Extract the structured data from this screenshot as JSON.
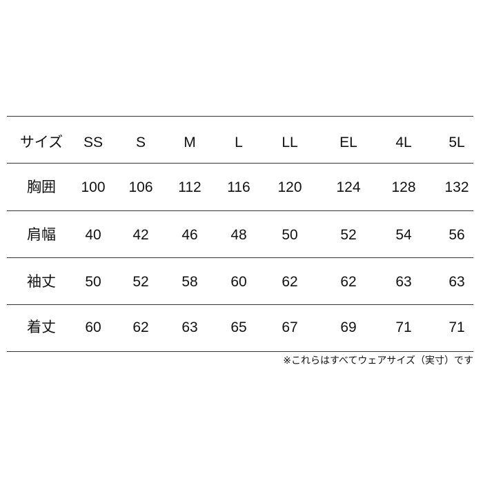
{
  "table": {
    "header": [
      "サイズ",
      "SS",
      "S",
      "M",
      "L",
      "LL",
      "EL",
      "4L",
      "5L"
    ],
    "rows": [
      [
        "胸囲",
        "100",
        "106",
        "112",
        "116",
        "120",
        "124",
        "128",
        "132"
      ],
      [
        "肩幅",
        "40",
        "42",
        "46",
        "48",
        "50",
        "52",
        "54",
        "56"
      ],
      [
        "袖丈",
        "50",
        "52",
        "58",
        "60",
        "62",
        "62",
        "63",
        "63"
      ],
      [
        "着丈",
        "60",
        "62",
        "63",
        "65",
        "67",
        "69",
        "71",
        "71"
      ]
    ]
  },
  "note": "※これらはすべてウェアサイズ（実寸）です"
}
